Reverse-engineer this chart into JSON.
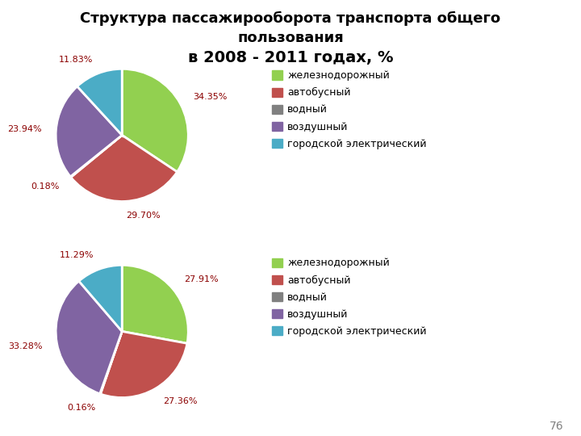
{
  "title_line1": "Структура пассажирооборота транспорта общего",
  "title_line2": "пользования",
  "title_line3": "в 2008 - 2011 годах, %",
  "pie1": {
    "values": [
      34.35,
      29.7,
      0.18,
      23.94,
      11.83
    ],
    "labels": [
      "34.35%",
      "29.70%",
      "0.18%",
      "23.94%",
      "11.83%"
    ],
    "colors": [
      "#92D050",
      "#C0504D",
      "#808080",
      "#8064A2",
      "#4BACC6"
    ],
    "startangle": 90
  },
  "pie2": {
    "values": [
      27.91,
      27.36,
      0.16,
      33.28,
      11.29
    ],
    "labels": [
      "27.91%",
      "27.36%",
      "0.16%",
      "33.28%",
      "11.29%"
    ],
    "colors": [
      "#92D050",
      "#C0504D",
      "#808080",
      "#8064A2",
      "#4BACC6"
    ],
    "startangle": 90
  },
  "legend_labels": [
    "железнодорожный",
    "автобусный",
    "водный",
    "воздушный",
    "городской электрический"
  ],
  "legend_colors": [
    "#92D050",
    "#C0504D",
    "#808080",
    "#8064A2",
    "#4BACC6"
  ],
  "page_number": "76",
  "background_color": "#FFFFFF",
  "label_fontsize": 8,
  "legend_fontsize": 9,
  "title_fontsize": 13,
  "title_line3_fontsize": 14
}
